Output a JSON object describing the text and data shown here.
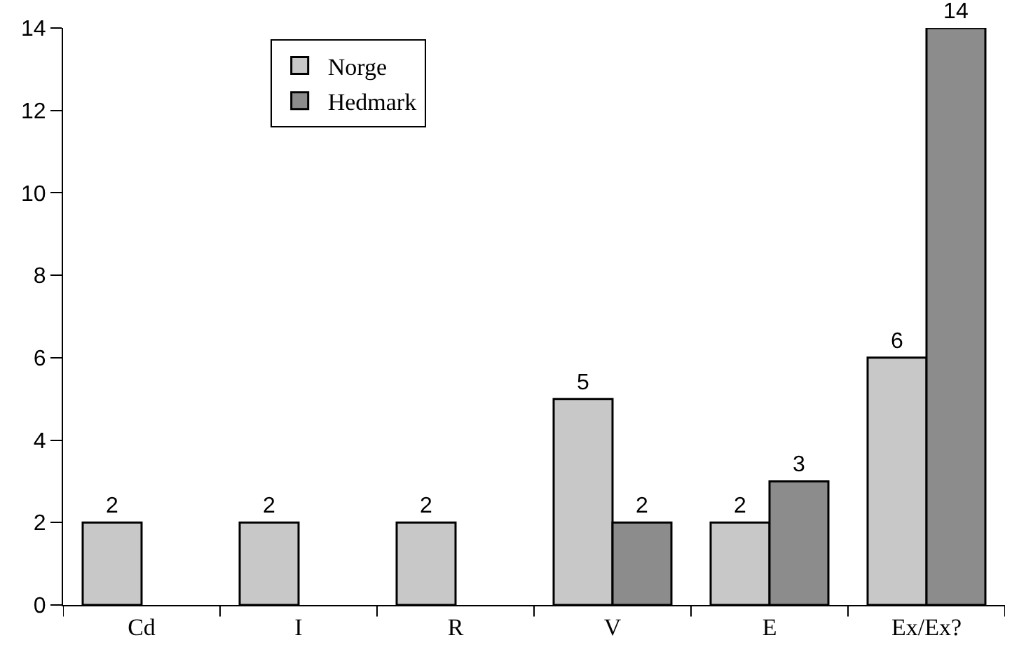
{
  "chart_data": {
    "type": "bar",
    "categories": [
      "Cd",
      "I",
      "R",
      "V",
      "E",
      "Ex/Ex?"
    ],
    "series": [
      {
        "name": "Norge",
        "color": "#c8c8c8",
        "values": [
          2,
          2,
          2,
          5,
          2,
          6
        ]
      },
      {
        "name": "Hedmark",
        "color": "#8c8c8c",
        "values": [
          null,
          null,
          null,
          2,
          3,
          14
        ]
      }
    ],
    "ylim": [
      0,
      14
    ],
    "yticks": [
      0,
      2,
      4,
      6,
      8,
      10,
      12,
      14
    ],
    "data_labels": true,
    "legend": "top left"
  }
}
